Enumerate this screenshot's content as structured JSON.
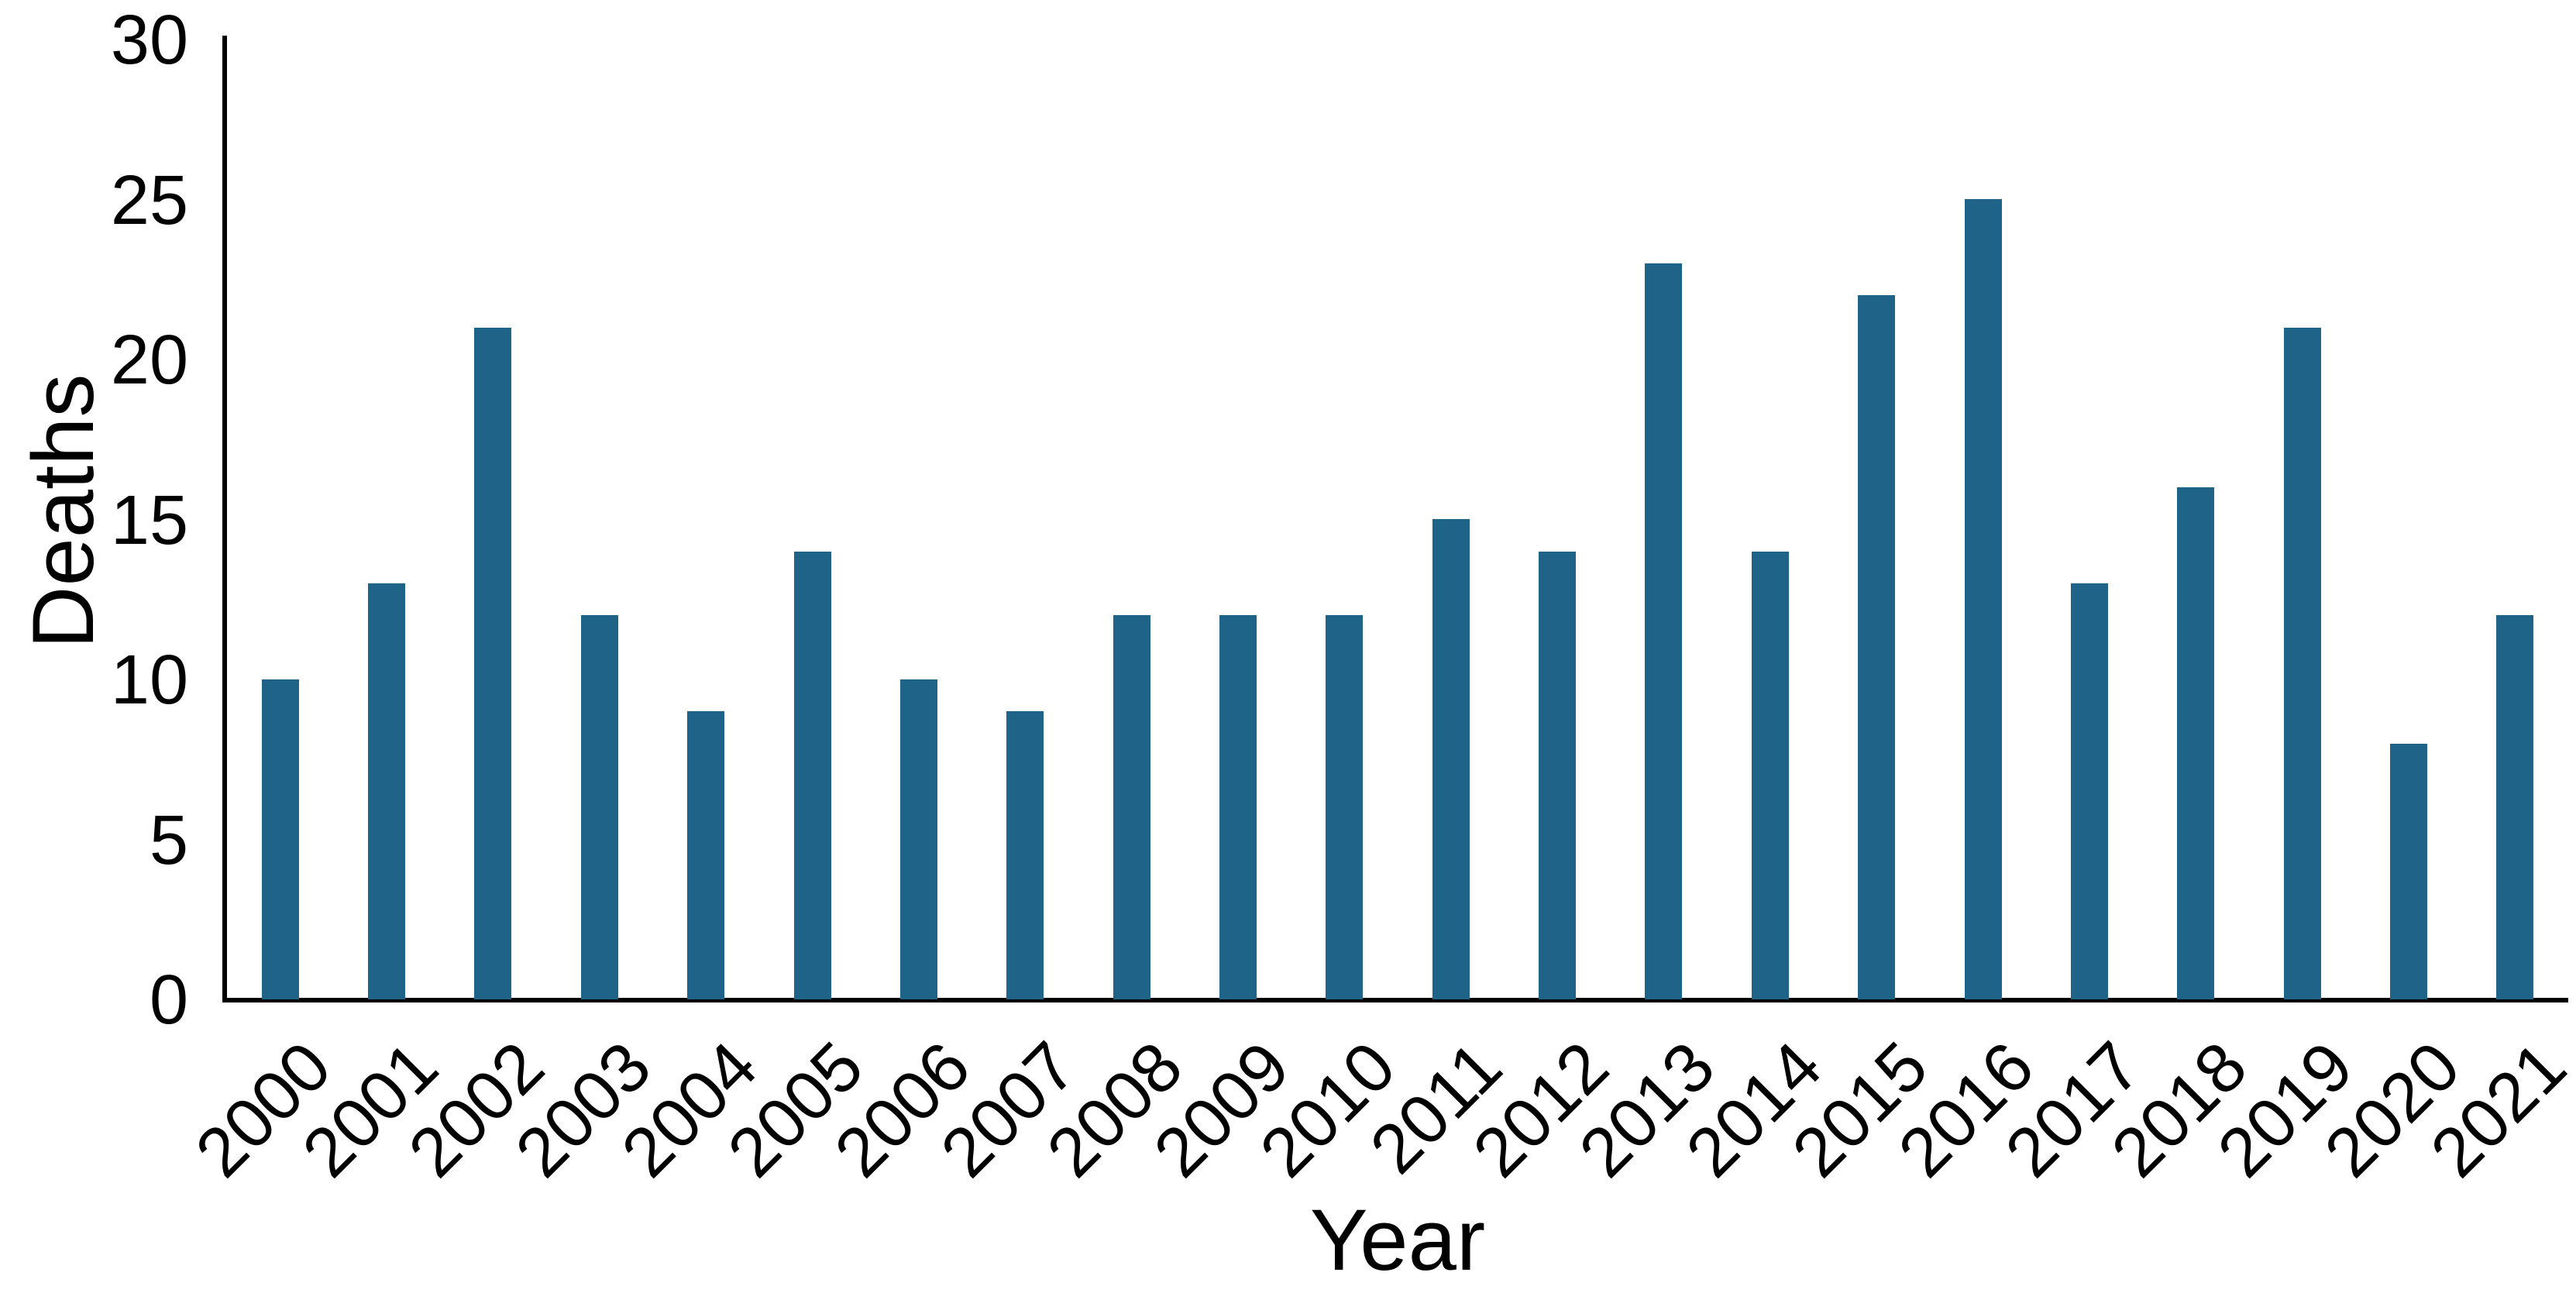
{
  "chart_data": {
    "type": "bar",
    "title": "",
    "categories": [
      "2000",
      "2001",
      "2002",
      "2003",
      "2004",
      "2005",
      "2006",
      "2007",
      "2008",
      "2009",
      "2010",
      "2011",
      "2012",
      "2013",
      "2014",
      "2015",
      "2016",
      "2017",
      "2018",
      "2019",
      "2020",
      "2021"
    ],
    "values": [
      10,
      13,
      21,
      12,
      9,
      14,
      10,
      9,
      12,
      12,
      12,
      15,
      14,
      23,
      14,
      22,
      25,
      13,
      16,
      21,
      8,
      12
    ],
    "xlabel": "Year",
    "ylabel": "Deaths",
    "ylim": [
      0,
      30
    ],
    "yticks": [
      0,
      5,
      10,
      15,
      20,
      25,
      30
    ],
    "grid": false,
    "legend": "none",
    "bar_color": "#1f6389",
    "axis_color": "#000000",
    "text_color": "#000000",
    "background_color": "#ffffff"
  }
}
